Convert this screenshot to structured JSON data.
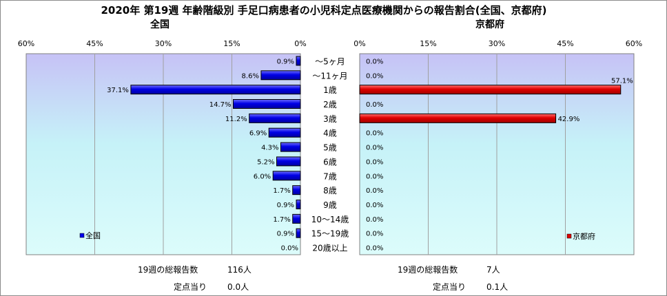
{
  "title": "2020年 第19週 年齢階級別 手足口病患者の小児科定点医療機関からの報告割合(全国、京都府)",
  "chart_data": [
    {
      "type": "bar",
      "orientation": "horizontal",
      "subtitle": "全国",
      "legend": "全国",
      "legend_position": "bottom-left",
      "categories": [
        "～5ヶ月",
        "～11ヶ月",
        "1歳",
        "2歳",
        "3歳",
        "4歳",
        "5歳",
        "6歳",
        "7歳",
        "8歳",
        "9歳",
        "10～14歳",
        "15～19歳",
        "20歳以上"
      ],
      "values": [
        0.9,
        8.6,
        37.1,
        14.7,
        11.2,
        6.9,
        4.3,
        5.2,
        6.0,
        1.7,
        0.9,
        1.7,
        0.9,
        0.0
      ],
      "value_labels": [
        "0.9%",
        "8.6%",
        "37.1%",
        "14.7%",
        "11.2%",
        "6.9%",
        "4.3%",
        "5.2%",
        "6.0%",
        "1.7%",
        "0.9%",
        "1.7%",
        "0.9%",
        "0.0%"
      ],
      "xlim": [
        0,
        60
      ],
      "x_ticks": [
        "60%",
        "45%",
        "30%",
        "15%",
        "0%"
      ],
      "x_reversed": true,
      "bar_color": "#0000ee",
      "grid": true
    },
    {
      "type": "bar",
      "orientation": "horizontal",
      "subtitle": "京都府",
      "legend": "京都府",
      "legend_position": "bottom-right",
      "categories": [
        "～5ヶ月",
        "～11ヶ月",
        "1歳",
        "2歳",
        "3歳",
        "4歳",
        "5歳",
        "6歳",
        "7歳",
        "8歳",
        "9歳",
        "10～14歳",
        "15～19歳",
        "20歳以上"
      ],
      "values": [
        0.0,
        0.0,
        57.1,
        0.0,
        42.9,
        0.0,
        0.0,
        0.0,
        0.0,
        0.0,
        0.0,
        0.0,
        0.0,
        0.0
      ],
      "value_labels": [
        "0.0%",
        "0.0%",
        "57.1%",
        "0.0%",
        "42.9%",
        "0.0%",
        "0.0%",
        "0.0%",
        "0.0%",
        "0.0%",
        "0.0%",
        "0.0%",
        "0.0%",
        "0.0%"
      ],
      "xlim": [
        0,
        60
      ],
      "x_ticks": [
        "0%",
        "15%",
        "30%",
        "45%",
        "60%"
      ],
      "x_reversed": false,
      "bar_color": "#dd0000",
      "grid": true
    }
  ],
  "summary": {
    "national": {
      "reports_label": "19週の総報告数",
      "reports_value": "116人",
      "per_site_label": "定点当り",
      "per_site_value": "0.0人"
    },
    "kyoto": {
      "reports_label": "19週の総報告数",
      "reports_value": "7人",
      "per_site_label": "定点当り",
      "per_site_value": "0.1人"
    }
  }
}
